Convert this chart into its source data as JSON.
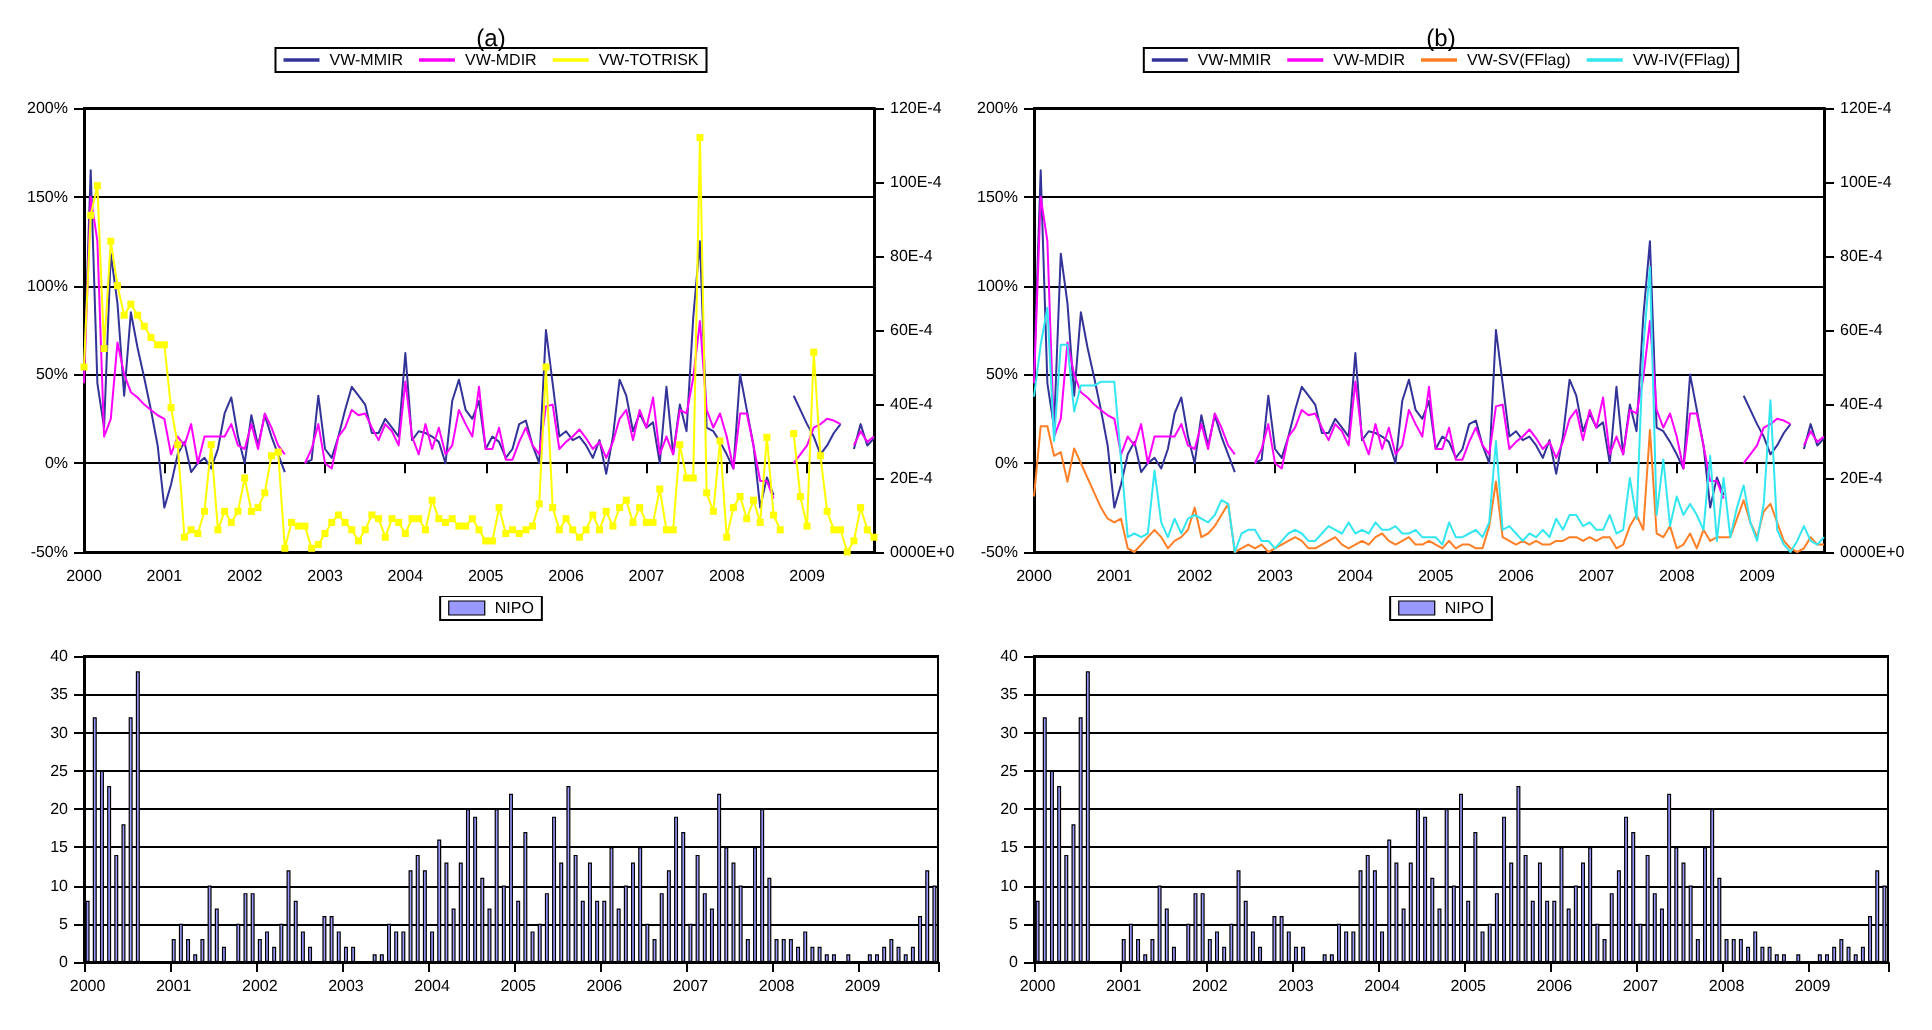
{
  "chart_data": [
    {
      "type": "line",
      "title": "(a)",
      "legend": "top",
      "grid": "y",
      "marker": "none",
      "line_style": "solid",
      "categories": [
        "2000",
        null,
        null,
        null,
        null,
        null,
        null,
        null,
        null,
        null,
        null,
        null,
        "2001",
        null,
        null,
        null,
        null,
        null,
        null,
        null,
        null,
        null,
        null,
        null,
        "2002",
        null,
        null,
        null,
        null,
        null,
        null,
        null,
        null,
        null,
        null,
        null,
        "2003",
        null,
        null,
        null,
        null,
        null,
        null,
        null,
        null,
        null,
        null,
        null,
        "2004",
        null,
        null,
        null,
        null,
        null,
        null,
        null,
        null,
        null,
        null,
        null,
        "2005",
        null,
        null,
        null,
        null,
        null,
        null,
        null,
        null,
        null,
        null,
        null,
        "2006",
        null,
        null,
        null,
        null,
        null,
        null,
        null,
        null,
        null,
        null,
        null,
        "2007",
        null,
        null,
        null,
        null,
        null,
        null,
        null,
        null,
        null,
        null,
        null,
        "2008",
        null,
        null,
        null,
        null,
        null,
        null,
        null,
        null,
        null,
        null,
        null,
        "2009",
        null,
        null,
        null,
        null,
        null,
        null,
        null,
        null,
        null,
        null
      ],
      "ylim": [
        -50,
        200
      ],
      "yticks": [
        {
          "value": -50,
          "label": "-50%"
        },
        {
          "value": 0,
          "label": "0%"
        },
        {
          "value": 50,
          "label": "50%"
        },
        {
          "value": 100,
          "label": "100%"
        },
        {
          "value": 150,
          "label": "150%"
        },
        {
          "value": 200,
          "label": "200%"
        }
      ],
      "y2lim": [
        0,
        0.012
      ],
      "y2ticks": [
        {
          "value": 0,
          "label": "0000E+0"
        },
        {
          "value": 0.002,
          "label": "20E-4"
        },
        {
          "value": 0.004,
          "label": "40E-4"
        },
        {
          "value": 0.006,
          "label": "60E-4"
        },
        {
          "value": 0.008,
          "label": "80E-4"
        },
        {
          "value": 0.01,
          "label": "100E-4"
        },
        {
          "value": 0.012,
          "label": "120E-4"
        }
      ],
      "series": [
        {
          "name": "VW-MMIR",
          "color": "#333399",
          "values": [
            50,
            165,
            45,
            20,
            118,
            90,
            38,
            85,
            65,
            48,
            30,
            10,
            -25,
            -12,
            5,
            12,
            -5,
            0,
            3,
            -3,
            8,
            28,
            37,
            15,
            0,
            27,
            10,
            27,
            15,
            5,
            -5,
            null,
            null,
            0,
            2,
            38,
            8,
            3,
            15,
            30,
            43,
            38,
            33,
            17,
            17,
            25,
            20,
            15,
            62,
            13,
            18,
            17,
            15,
            12,
            0,
            35,
            47,
            30,
            25,
            35,
            8,
            15,
            12,
            3,
            8,
            22,
            24,
            10,
            0,
            75,
            45,
            15,
            18,
            13,
            15,
            10,
            3,
            13,
            -6,
            15,
            47,
            38,
            18,
            28,
            20,
            23,
            0,
            43,
            5,
            33,
            18,
            82,
            125,
            20,
            18,
            12,
            5,
            -3,
            50,
            30,
            10,
            -25,
            -8,
            -18,
            null,
            null,
            38,
            30,
            22,
            15,
            5,
            10,
            17,
            22,
            null,
            8,
            22,
            10,
            14
          ]
        },
        {
          "name": "VW-MDIR",
          "color": "#ff00ff",
          "values": [
            45,
            150,
            125,
            15,
            25,
            68,
            50,
            40,
            37,
            33,
            30,
            27,
            25,
            5,
            15,
            10,
            22,
            0,
            15,
            15,
            15,
            15,
            22,
            10,
            8,
            22,
            8,
            28,
            20,
            10,
            5,
            null,
            null,
            0,
            8,
            22,
            0,
            -3,
            15,
            20,
            30,
            27,
            28,
            20,
            13,
            22,
            18,
            10,
            46,
            15,
            5,
            22,
            8,
            20,
            5,
            10,
            30,
            22,
            15,
            43,
            8,
            8,
            20,
            2,
            2,
            12,
            20,
            10,
            5,
            32,
            33,
            8,
            12,
            15,
            19,
            14,
            8,
            12,
            3,
            12,
            25,
            30,
            13,
            30,
            20,
            37,
            5,
            15,
            5,
            30,
            28,
            48,
            80,
            30,
            20,
            28,
            15,
            -3,
            28,
            28,
            10,
            -10,
            -10,
            -20,
            null,
            null,
            0,
            5,
            10,
            20,
            22,
            25,
            24,
            22,
            null,
            10,
            18,
            12,
            15
          ]
        },
        {
          "name": "VW-TOTRISK",
          "color": "#ffff00",
          "axis": "y2",
          "marker": "square",
          "values": [
            0.005,
            0.0091,
            0.0099,
            0.0055,
            0.0084,
            0.0072,
            0.0064,
            0.0067,
            0.0064,
            0.0061,
            0.0058,
            0.0056,
            0.0056,
            0.0039,
            0.0029,
            0.0004,
            0.0006,
            0.0005,
            0.0011,
            0.0029,
            0.0006,
            0.0011,
            0.0008,
            0.0011,
            0.002,
            0.0011,
            0.0012,
            0.0016,
            0.0026,
            0.0027,
            0.0001,
            0.0008,
            0.0007,
            0.0007,
            0.0001,
            0.0002,
            0.0005,
            0.0008,
            0.001,
            0.0008,
            0.0006,
            0.0003,
            0.0006,
            0.001,
            0.0009,
            0.0004,
            0.0009,
            0.0008,
            0.0005,
            0.0009,
            0.0009,
            0.0006,
            0.0014,
            0.0009,
            0.0008,
            0.0009,
            0.0007,
            0.0007,
            0.0009,
            0.0006,
            0.0003,
            0.0003,
            0.0012,
            0.0005,
            0.0006,
            0.0005,
            0.0006,
            0.0007,
            0.0013,
            0.005,
            0.0012,
            0.0006,
            0.0009,
            0.0006,
            0.0004,
            0.0006,
            0.001,
            0.0006,
            0.0011,
            0.0007,
            0.0012,
            0.0014,
            0.0008,
            0.0012,
            0.0008,
            0.0008,
            0.0017,
            0.0006,
            0.0006,
            0.0029,
            0.002,
            0.002,
            0.0112,
            0.0016,
            0.0011,
            0.003,
            0.0004,
            0.0012,
            0.0015,
            0.0009,
            0.0014,
            0.0008,
            0.0031,
            0.001,
            0.0006,
            null,
            0.0032,
            0.0015,
            0.0007,
            0.0054,
            0.0026,
            0.0011,
            0.0006,
            0.0006,
            0,
            0.0003,
            0.0012,
            0.0006,
            0.0004
          ]
        }
      ]
    },
    {
      "type": "line",
      "title": "(b)",
      "legend": "top",
      "grid": "y",
      "marker": "none",
      "line_style": "solid",
      "categories": [
        "2000",
        null,
        null,
        null,
        null,
        null,
        null,
        null,
        null,
        null,
        null,
        null,
        "2001",
        null,
        null,
        null,
        null,
        null,
        null,
        null,
        null,
        null,
        null,
        null,
        "2002",
        null,
        null,
        null,
        null,
        null,
        null,
        null,
        null,
        null,
        null,
        null,
        "2003",
        null,
        null,
        null,
        null,
        null,
        null,
        null,
        null,
        null,
        null,
        null,
        "2004",
        null,
        null,
        null,
        null,
        null,
        null,
        null,
        null,
        null,
        null,
        null,
        "2005",
        null,
        null,
        null,
        null,
        null,
        null,
        null,
        null,
        null,
        null,
        null,
        "2006",
        null,
        null,
        null,
        null,
        null,
        null,
        null,
        null,
        null,
        null,
        null,
        "2007",
        null,
        null,
        null,
        null,
        null,
        null,
        null,
        null,
        null,
        null,
        null,
        "2008",
        null,
        null,
        null,
        null,
        null,
        null,
        null,
        null,
        null,
        null,
        null,
        "2009",
        null,
        null,
        null,
        null,
        null,
        null,
        null,
        null,
        null,
        null
      ],
      "ylim": [
        -50,
        200
      ],
      "yticks": [
        {
          "value": -50,
          "label": "-50%"
        },
        {
          "value": 0,
          "label": "0%"
        },
        {
          "value": 50,
          "label": "50%"
        },
        {
          "value": 100,
          "label": "100%"
        },
        {
          "value": 150,
          "label": "150%"
        },
        {
          "value": 200,
          "label": "200%"
        }
      ],
      "y2lim": [
        0,
        0.012
      ],
      "y2ticks": [
        {
          "value": 0,
          "label": "0000E+0"
        },
        {
          "value": 0.002,
          "label": "20E-4"
        },
        {
          "value": 0.004,
          "label": "40E-4"
        },
        {
          "value": 0.006,
          "label": "60E-4"
        },
        {
          "value": 0.008,
          "label": "80E-4"
        },
        {
          "value": 0.01,
          "label": "100E-4"
        },
        {
          "value": 0.012,
          "label": "120E-4"
        }
      ],
      "series": [
        {
          "name": "VW-MMIR",
          "color": "#333399",
          "values": [
            50,
            165,
            45,
            20,
            118,
            90,
            38,
            85,
            65,
            48,
            30,
            10,
            -25,
            -12,
            5,
            12,
            -5,
            0,
            3,
            -3,
            8,
            28,
            37,
            15,
            0,
            27,
            10,
            27,
            15,
            5,
            -5,
            null,
            null,
            0,
            2,
            38,
            8,
            3,
            15,
            30,
            43,
            38,
            33,
            17,
            17,
            25,
            20,
            15,
            62,
            13,
            18,
            17,
            15,
            12,
            0,
            35,
            47,
            30,
            25,
            35,
            8,
            15,
            12,
            3,
            8,
            22,
            24,
            10,
            0,
            75,
            45,
            15,
            18,
            13,
            15,
            10,
            3,
            13,
            -6,
            15,
            47,
            38,
            18,
            28,
            20,
            23,
            0,
            43,
            5,
            33,
            18,
            82,
            125,
            20,
            18,
            12,
            5,
            -3,
            50,
            30,
            10,
            -25,
            -8,
            -18,
            null,
            null,
            38,
            30,
            22,
            15,
            5,
            10,
            17,
            22,
            null,
            8,
            22,
            10,
            14
          ]
        },
        {
          "name": "VW-MDIR",
          "color": "#ff00ff",
          "values": [
            45,
            150,
            125,
            15,
            25,
            68,
            50,
            40,
            37,
            33,
            30,
            27,
            25,
            5,
            15,
            10,
            22,
            0,
            15,
            15,
            15,
            15,
            22,
            10,
            8,
            22,
            8,
            28,
            20,
            10,
            5,
            null,
            null,
            0,
            8,
            22,
            0,
            -3,
            15,
            20,
            30,
            27,
            28,
            20,
            13,
            22,
            18,
            10,
            46,
            15,
            5,
            22,
            8,
            20,
            5,
            10,
            30,
            22,
            15,
            43,
            8,
            8,
            20,
            2,
            2,
            12,
            20,
            10,
            5,
            32,
            33,
            8,
            12,
            15,
            19,
            14,
            8,
            12,
            3,
            12,
            25,
            30,
            13,
            30,
            20,
            37,
            5,
            15,
            5,
            30,
            28,
            48,
            80,
            30,
            20,
            28,
            15,
            -3,
            28,
            28,
            10,
            -10,
            -10,
            -20,
            null,
            null,
            0,
            5,
            10,
            20,
            22,
            25,
            24,
            22,
            null,
            10,
            18,
            12,
            15
          ]
        },
        {
          "name": "VW-SV(FFlag)",
          "color": "#ff7f27",
          "axis": "y2",
          "values": [
            0.0015,
            0.0034,
            0.0034,
            0.0026,
            0.0027,
            0.0019,
            0.0028,
            0.0024,
            0.002,
            0.0016,
            0.0012,
            0.0009,
            0.0008,
            0.0009,
            0.0001,
            0,
            0.0002,
            0.0004,
            0.0006,
            0.0004,
            0.0001,
            0.0003,
            0.0004,
            0.0006,
            0.0012,
            0.0004,
            0.0005,
            0.0007,
            0.001,
            0.0013,
            0,
            0.0001,
            0.0002,
            0.0001,
            0.0002,
            0,
            0.0001,
            0.0002,
            0.0003,
            0.0004,
            0.0003,
            0.0001,
            0.0001,
            0.0002,
            0.0003,
            0.0004,
            0.0002,
            0.0001,
            0.0002,
            0.0003,
            0.0002,
            0.0004,
            0.0005,
            0.0003,
            0.0002,
            0.0003,
            0.0004,
            0.0002,
            0.0002,
            0.0003,
            0.0002,
            0.0001,
            0.0003,
            0.0001,
            0.0002,
            0.0002,
            0.0001,
            0.0001,
            0.0007,
            0.0019,
            0.0004,
            0.0003,
            0.0002,
            0.0003,
            0.0002,
            0.0003,
            0.0002,
            0.0002,
            0.0003,
            0.0003,
            0.0004,
            0.0004,
            0.0003,
            0.0004,
            0.0003,
            0.0004,
            0.0004,
            0.0001,
            0.0002,
            0.0007,
            0.001,
            0.0006,
            0.0033,
            0.0005,
            0.0004,
            0.0007,
            0.0001,
            0.0002,
            0.0005,
            0.0001,
            0.0006,
            0.0003,
            0.0004,
            0.0004,
            0.0004,
            0.0009,
            0.0014,
            0.0008,
            0.0004,
            0.0011,
            0.0013,
            0.0008,
            0.0003,
            0.0001,
            0,
            0.0001,
            0.0004,
            0.0002,
            0.0002
          ]
        },
        {
          "name": "VW-IV(FFlag)",
          "color": "#33e6f0",
          "axis": "y2",
          "values": [
            0.0042,
            0.0056,
            0.0066,
            0.003,
            0.0056,
            0.0056,
            0.0038,
            0.0045,
            0.0045,
            0.0045,
            0.0046,
            0.0046,
            0.0046,
            0.0025,
            0.0004,
            0.0005,
            0.0004,
            0.0005,
            0.0022,
            0.0008,
            0.0004,
            0.0009,
            0.0005,
            0.0009,
            0.001,
            0.0009,
            0.0008,
            0.001,
            0.0014,
            0.0013,
            0,
            0.0005,
            0.0006,
            0.0006,
            0.0003,
            0.0003,
            0.0001,
            0.0003,
            0.0005,
            0.0006,
            0.0005,
            0.0003,
            0.0003,
            0.0005,
            0.0007,
            0.0006,
            0.0005,
            0.0008,
            0.0005,
            0.0006,
            0.0005,
            0.0008,
            0.0006,
            0.0006,
            0.0007,
            0.0005,
            0.0005,
            0.0006,
            0.0004,
            0.0004,
            0.0004,
            0.0002,
            0.0008,
            0.0004,
            0.0004,
            0.0005,
            0.0006,
            0.0004,
            0.0008,
            0.003,
            0.0006,
            0.0007,
            0.0005,
            0.0003,
            0.0005,
            0.0004,
            0.0006,
            0.0004,
            0.0009,
            0.0006,
            0.001,
            0.001,
            0.0007,
            0.0008,
            0.0006,
            0.0006,
            0.001,
            0.0005,
            0.0006,
            0.002,
            0.0009,
            0.0055,
            0.0077,
            0.001,
            0.0025,
            0.0007,
            0.0015,
            0.001,
            0.0013,
            0.001,
            0.0006,
            0.0026,
            0.0003,
            0.002,
            0.0004,
            0.0012,
            0.0018,
            0.0008,
            0.0003,
            0.0013,
            0.0041,
            0.0006,
            0.0002,
            0,
            0.0003,
            0.0007,
            0.0003,
            0.0002,
            0.0004
          ]
        }
      ]
    },
    {
      "type": "bar",
      "legend": "top",
      "grid": "y",
      "categories": [
        "2000",
        null,
        null,
        null,
        null,
        null,
        null,
        null,
        null,
        null,
        null,
        null,
        "2001",
        null,
        null,
        null,
        null,
        null,
        null,
        null,
        null,
        null,
        null,
        null,
        "2002",
        null,
        null,
        null,
        null,
        null,
        null,
        null,
        null,
        null,
        null,
        null,
        "2003",
        null,
        null,
        null,
        null,
        null,
        null,
        null,
        null,
        null,
        null,
        null,
        "2004",
        null,
        null,
        null,
        null,
        null,
        null,
        null,
        null,
        null,
        null,
        null,
        "2005",
        null,
        null,
        null,
        null,
        null,
        null,
        null,
        null,
        null,
        null,
        null,
        "2006",
        null,
        null,
        null,
        null,
        null,
        null,
        null,
        null,
        null,
        null,
        null,
        "2007",
        null,
        null,
        null,
        null,
        null,
        null,
        null,
        null,
        null,
        null,
        null,
        "2008",
        null,
        null,
        null,
        null,
        null,
        null,
        null,
        null,
        null,
        null,
        null,
        "2009",
        null,
        null,
        null,
        null,
        null,
        null,
        null,
        null,
        null,
        null
      ],
      "ylim": [
        0,
        40
      ],
      "yticks": [
        0,
        5,
        10,
        15,
        20,
        25,
        30,
        35,
        40
      ],
      "series": [
        {
          "name": "NIPO",
          "color": "#9999ff",
          "values": [
            8,
            32,
            25,
            23,
            14,
            18,
            32,
            38,
            0,
            0,
            0,
            0,
            3,
            5,
            3,
            1,
            3,
            10,
            7,
            2,
            0,
            5,
            9,
            9,
            3,
            4,
            2,
            5,
            12,
            8,
            4,
            2,
            0,
            6,
            6,
            4,
            2,
            2,
            0,
            0,
            1,
            1,
            5,
            4,
            4,
            12,
            14,
            12,
            4,
            16,
            13,
            7,
            13,
            20,
            19,
            11,
            7,
            20,
            10,
            22,
            8,
            17,
            4,
            5,
            9,
            19,
            13,
            23,
            14,
            8,
            13,
            8,
            8,
            15,
            7,
            10,
            13,
            15,
            5,
            3,
            9,
            12,
            19,
            17,
            5,
            14,
            9,
            7,
            22,
            15,
            13,
            10,
            3,
            15,
            20,
            11,
            3,
            3,
            3,
            2,
            4,
            2,
            2,
            1,
            1,
            0,
            1,
            0,
            0,
            1,
            1,
            2,
            3,
            2,
            1,
            2,
            6,
            12,
            10
          ]
        }
      ]
    },
    {
      "type": "bar",
      "legend": "top",
      "grid": "y",
      "categories": [
        "2000",
        null,
        null,
        null,
        null,
        null,
        null,
        null,
        null,
        null,
        null,
        null,
        "2001",
        null,
        null,
        null,
        null,
        null,
        null,
        null,
        null,
        null,
        null,
        null,
        "2002",
        null,
        null,
        null,
        null,
        null,
        null,
        null,
        null,
        null,
        null,
        null,
        "2003",
        null,
        null,
        null,
        null,
        null,
        null,
        null,
        null,
        null,
        null,
        null,
        "2004",
        null,
        null,
        null,
        null,
        null,
        null,
        null,
        null,
        null,
        null,
        null,
        "2005",
        null,
        null,
        null,
        null,
        null,
        null,
        null,
        null,
        null,
        null,
        null,
        "2006",
        null,
        null,
        null,
        null,
        null,
        null,
        null,
        null,
        null,
        null,
        null,
        "2007",
        null,
        null,
        null,
        null,
        null,
        null,
        null,
        null,
        null,
        null,
        null,
        "2008",
        null,
        null,
        null,
        null,
        null,
        null,
        null,
        null,
        null,
        null,
        null,
        "2009",
        null,
        null,
        null,
        null,
        null,
        null,
        null,
        null,
        null,
        null
      ],
      "ylim": [
        0,
        40
      ],
      "yticks": [
        0,
        5,
        10,
        15,
        20,
        25,
        30,
        35,
        40
      ],
      "series": [
        {
          "name": "NIPO",
          "color": "#9999ff",
          "values": [
            8,
            32,
            25,
            23,
            14,
            18,
            32,
            38,
            0,
            0,
            0,
            0,
            3,
            5,
            3,
            1,
            3,
            10,
            7,
            2,
            0,
            5,
            9,
            9,
            3,
            4,
            2,
            5,
            12,
            8,
            4,
            2,
            0,
            6,
            6,
            4,
            2,
            2,
            0,
            0,
            1,
            1,
            5,
            4,
            4,
            12,
            14,
            12,
            4,
            16,
            13,
            7,
            13,
            20,
            19,
            11,
            7,
            20,
            10,
            22,
            8,
            17,
            4,
            5,
            9,
            19,
            13,
            23,
            14,
            8,
            13,
            8,
            8,
            15,
            7,
            10,
            13,
            15,
            5,
            3,
            9,
            12,
            19,
            17,
            5,
            14,
            9,
            7,
            22,
            15,
            13,
            10,
            3,
            15,
            20,
            11,
            3,
            3,
            3,
            2,
            4,
            2,
            2,
            1,
            1,
            0,
            1,
            0,
            0,
            1,
            1,
            2,
            3,
            2,
            1,
            2,
            6,
            12,
            10
          ]
        }
      ]
    }
  ]
}
